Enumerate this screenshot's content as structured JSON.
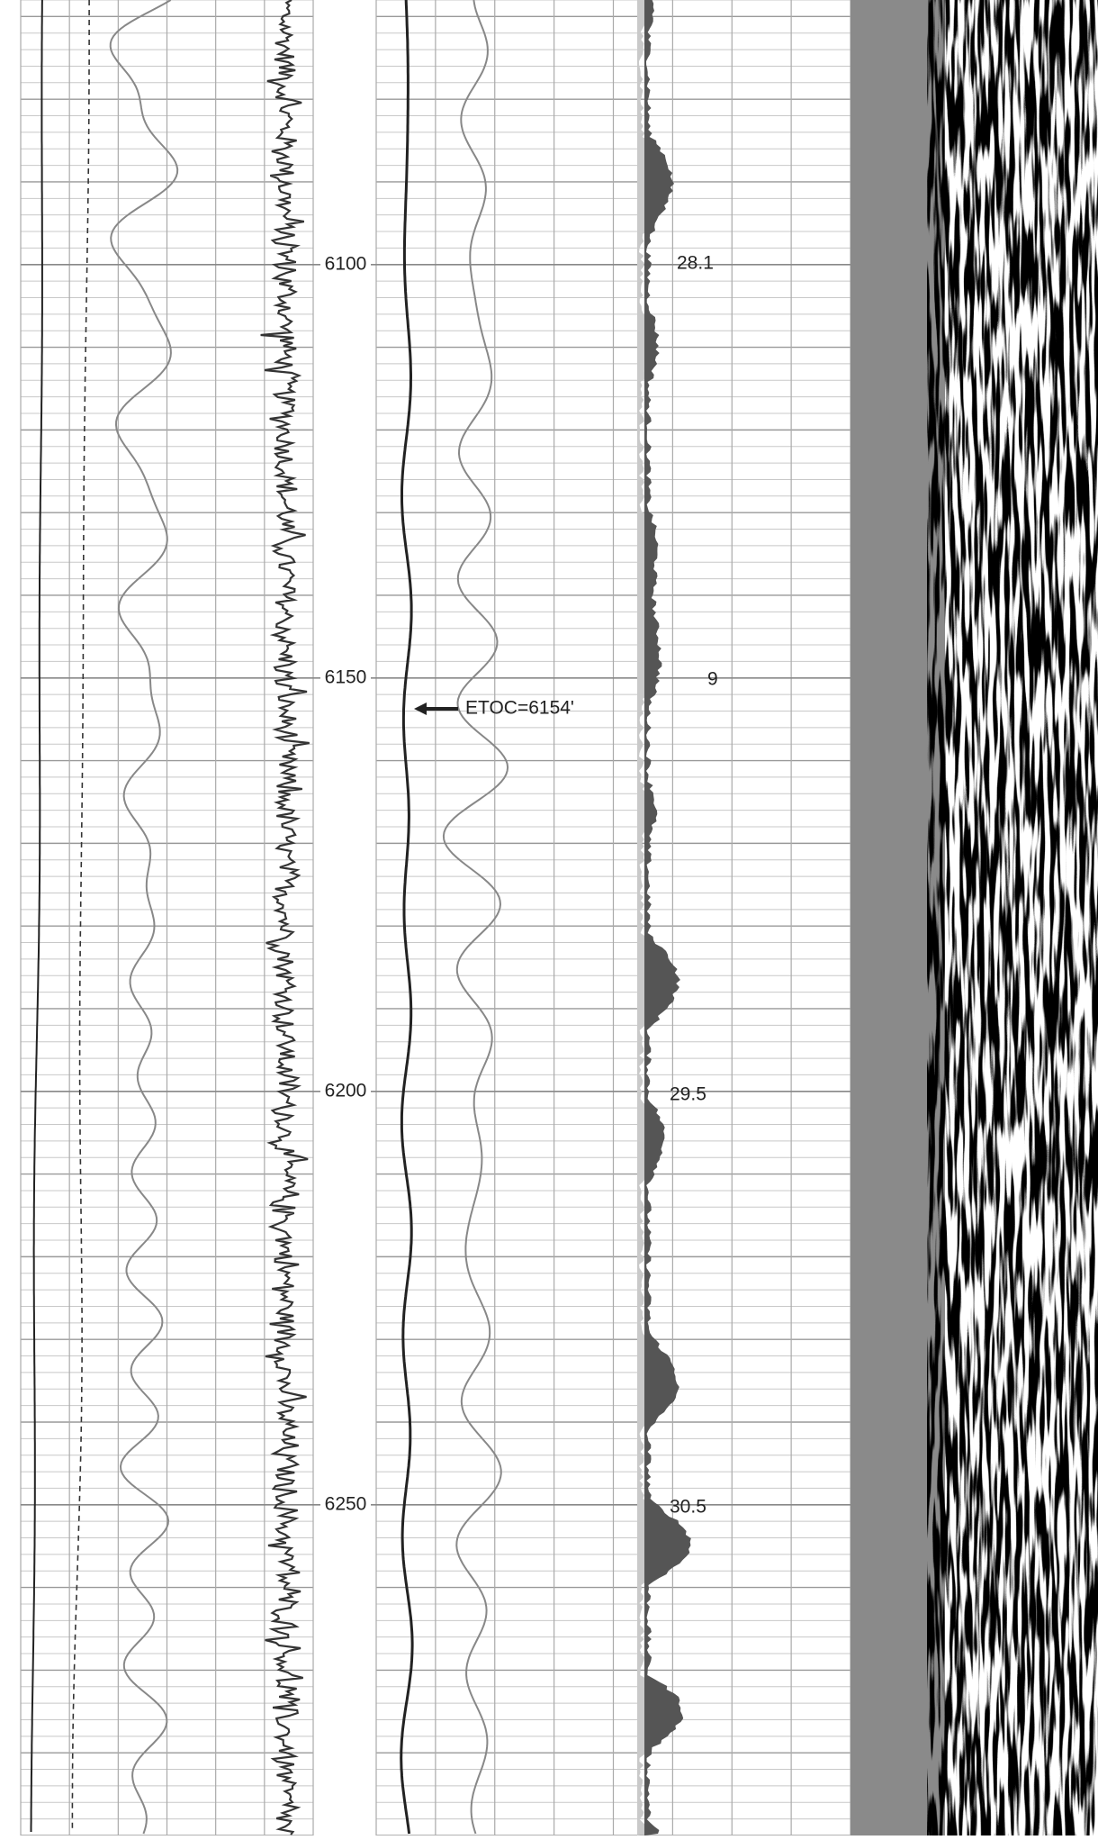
{
  "chart_data": {
    "type": "well-log",
    "ylim": [
      6068,
      6290
    ],
    "yticks": [
      6100,
      6150,
      6200,
      6250
    ],
    "annotations": [
      "ETOC=6154'",
      "28.1",
      "9",
      "29.5",
      "30.5"
    ]
  }
}
